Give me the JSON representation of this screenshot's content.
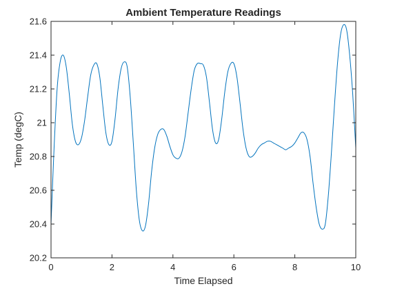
{
  "chart_data": {
    "type": "line",
    "title": "Ambient Temperature Readings",
    "xlabel": "Time Elapsed",
    "ylabel": "Temp (degC)",
    "xlim": [
      0,
      10
    ],
    "ylim": [
      20.2,
      21.6
    ],
    "xticks": [
      0,
      2,
      4,
      6,
      8,
      10
    ],
    "xtick_labels": [
      "0",
      "2",
      "4",
      "6",
      "8",
      "10"
    ],
    "yticks": [
      20.2,
      20.4,
      20.6,
      20.8,
      21.0,
      21.2,
      21.4,
      21.6
    ],
    "ytick_labels": [
      "20.2",
      "20.4",
      "20.6",
      "20.8",
      "21",
      "21.2",
      "21.4",
      "21.6"
    ],
    "grid": false,
    "box": true,
    "series": [
      {
        "color": "#0072BD",
        "x": [
          0,
          0.1,
          0.2,
          0.3,
          0.4,
          0.5,
          0.6,
          0.7,
          0.8,
          0.9,
          1.0,
          1.1,
          1.2,
          1.3,
          1.4,
          1.5,
          1.6,
          1.7,
          1.8,
          1.9,
          2.0,
          2.1,
          2.2,
          2.3,
          2.4,
          2.5,
          2.6,
          2.7,
          2.8,
          2.9,
          3.0,
          3.1,
          3.2,
          3.3,
          3.4,
          3.5,
          3.6,
          3.7,
          3.8,
          3.9,
          4.0,
          4.1,
          4.2,
          4.3,
          4.4,
          4.5,
          4.6,
          4.7,
          4.8,
          4.9,
          5.0,
          5.1,
          5.2,
          5.3,
          5.4,
          5.5,
          5.6,
          5.7,
          5.8,
          5.9,
          6.0,
          6.1,
          6.2,
          6.3,
          6.4,
          6.5,
          6.6,
          6.7,
          6.8,
          6.9,
          7.0,
          7.1,
          7.2,
          7.3,
          7.4,
          7.5,
          7.6,
          7.7,
          7.8,
          7.9,
          8.0,
          8.1,
          8.2,
          8.3,
          8.4,
          8.5,
          8.6,
          8.7,
          8.8,
          8.9,
          9.0,
          9.1,
          9.2,
          9.3,
          9.4,
          9.5,
          9.6,
          9.7,
          9.8,
          9.9,
          10.0
        ],
        "y": [
          20.4,
          20.85,
          21.2,
          21.36,
          21.4,
          21.33,
          21.17,
          20.99,
          20.89,
          20.87,
          20.91,
          21.01,
          21.15,
          21.28,
          21.34,
          21.35,
          21.27,
          21.1,
          20.94,
          20.87,
          20.89,
          21.02,
          21.2,
          21.32,
          21.36,
          21.33,
          21.15,
          20.88,
          20.6,
          20.42,
          20.36,
          20.39,
          20.52,
          20.71,
          20.85,
          20.93,
          20.96,
          20.96,
          20.92,
          20.86,
          20.81,
          20.79,
          20.79,
          20.83,
          20.92,
          21.06,
          21.2,
          21.31,
          21.35,
          21.35,
          21.34,
          21.27,
          21.12,
          20.96,
          20.88,
          20.9,
          21.02,
          21.18,
          21.3,
          21.35,
          21.35,
          21.27,
          21.12,
          20.96,
          20.85,
          20.8,
          20.8,
          20.82,
          20.85,
          20.87,
          20.88,
          20.89,
          20.89,
          20.88,
          20.87,
          20.86,
          20.85,
          20.84,
          20.85,
          20.86,
          20.88,
          20.91,
          20.94,
          20.94,
          20.9,
          20.8,
          20.64,
          20.5,
          20.4,
          20.37,
          20.4,
          20.57,
          20.82,
          21.1,
          21.35,
          21.52,
          21.58,
          21.55,
          21.4,
          21.17,
          20.85
        ]
      }
    ]
  }
}
